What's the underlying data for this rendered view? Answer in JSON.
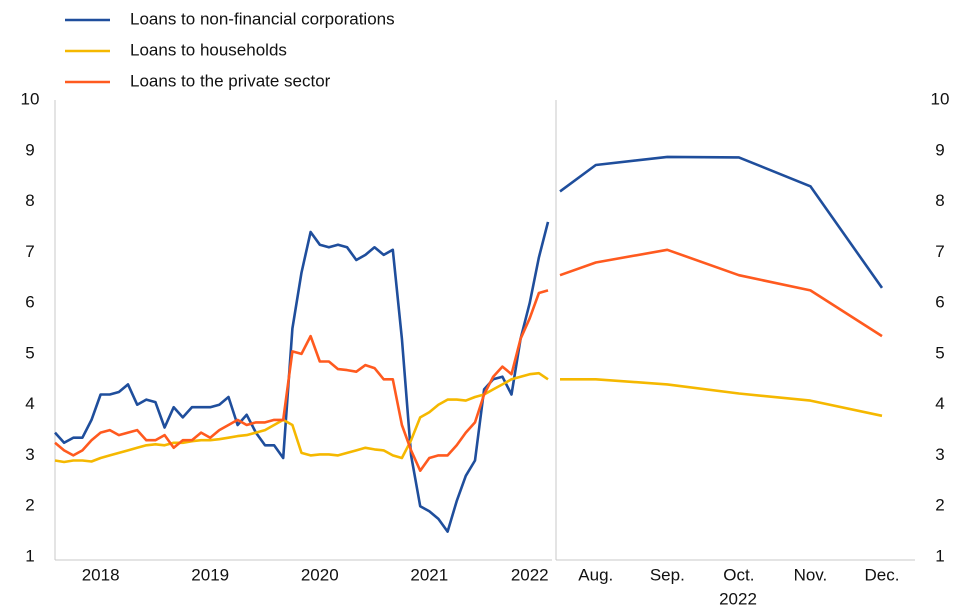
{
  "chart_data": [
    {
      "type": "line",
      "categories": [
        null,
        null,
        null,
        null,
        null,
        "2018",
        null,
        null,
        null,
        null,
        null,
        null,
        null,
        null,
        null,
        null,
        null,
        "2019",
        null,
        null,
        null,
        null,
        null,
        null,
        null,
        null,
        null,
        null,
        null,
        "2020",
        null,
        null,
        null,
        null,
        null,
        null,
        null,
        null,
        null,
        null,
        null,
        "2021",
        null,
        null,
        null,
        null,
        null,
        null,
        null,
        null,
        null,
        null,
        "2022",
        null,
        null
      ],
      "series": [
        {
          "name": "Loans to non-financial corporations",
          "color": "#1f4e9c",
          "values": [
            3.45,
            3.25,
            3.35,
            3.35,
            3.7,
            4.2,
            4.2,
            4.25,
            4.4,
            4.0,
            4.1,
            4.05,
            3.55,
            3.95,
            3.75,
            3.95,
            3.95,
            3.95,
            4.0,
            4.15,
            3.6,
            3.8,
            3.45,
            3.2,
            3.2,
            2.95,
            5.5,
            6.6,
            7.4,
            7.15,
            7.1,
            7.15,
            7.1,
            6.85,
            6.95,
            7.1,
            6.95,
            7.05,
            5.3,
            3.0,
            2.0,
            1.9,
            1.75,
            1.5,
            2.1,
            2.6,
            2.9,
            4.3,
            4.5,
            4.55,
            4.2,
            5.3,
            6.0,
            6.9,
            7.6
          ]
        },
        {
          "name": "Loans to households",
          "color": "#f5b800",
          "values": [
            2.9,
            2.87,
            2.9,
            2.9,
            2.88,
            2.95,
            3.0,
            3.05,
            3.1,
            3.15,
            3.2,
            3.22,
            3.2,
            3.25,
            3.25,
            3.28,
            3.3,
            3.3,
            3.32,
            3.35,
            3.38,
            3.4,
            3.45,
            3.5,
            3.6,
            3.7,
            3.6,
            3.05,
            3.0,
            3.02,
            3.02,
            3.0,
            3.05,
            3.1,
            3.15,
            3.12,
            3.1,
            3.0,
            2.95,
            3.3,
            3.75,
            3.85,
            4.0,
            4.1,
            4.1,
            4.08,
            4.15,
            4.2,
            4.3,
            4.4,
            4.5,
            4.55,
            4.6,
            4.62,
            4.5
          ]
        },
        {
          "name": "Loans to the private sector",
          "color": "#ff5a1f",
          "values": [
            3.25,
            3.1,
            3.0,
            3.1,
            3.3,
            3.45,
            3.5,
            3.4,
            3.45,
            3.5,
            3.3,
            3.3,
            3.4,
            3.15,
            3.3,
            3.3,
            3.45,
            3.35,
            3.5,
            3.6,
            3.7,
            3.6,
            3.65,
            3.65,
            3.7,
            3.7,
            5.05,
            5.0,
            5.35,
            4.85,
            4.85,
            4.7,
            4.68,
            4.65,
            4.78,
            4.72,
            4.5,
            4.5,
            3.6,
            3.1,
            2.7,
            2.95,
            3.0,
            3.0,
            3.2,
            3.45,
            3.65,
            4.2,
            4.55,
            4.75,
            4.6,
            5.3,
            5.7,
            6.2,
            6.25
          ]
        }
      ],
      "ylim": [
        1,
        10
      ],
      "yticks": [
        1,
        2,
        3,
        4,
        5,
        6,
        7,
        8,
        9,
        10
      ],
      "legend": "top-left"
    },
    {
      "type": "line",
      "x_label": "2022",
      "categories": [
        null,
        "Aug.",
        "Sep.",
        "Oct.",
        "Nov.",
        "Dec."
      ],
      "series": [
        {
          "color": "#1f4e9c",
          "values": [
            8.2,
            8.72,
            8.88,
            8.87,
            8.3,
            6.3
          ]
        },
        {
          "color": "#f5b800",
          "values": [
            4.5,
            4.5,
            4.4,
            4.22,
            4.08,
            3.78
          ]
        },
        {
          "color": "#ff5a1f",
          "values": [
            6.55,
            6.8,
            7.05,
            6.55,
            6.25,
            5.35
          ]
        }
      ],
      "ylim": [
        1,
        10
      ],
      "yticks": [
        1,
        2,
        3,
        4,
        5,
        6,
        7,
        8,
        9,
        10
      ]
    }
  ]
}
